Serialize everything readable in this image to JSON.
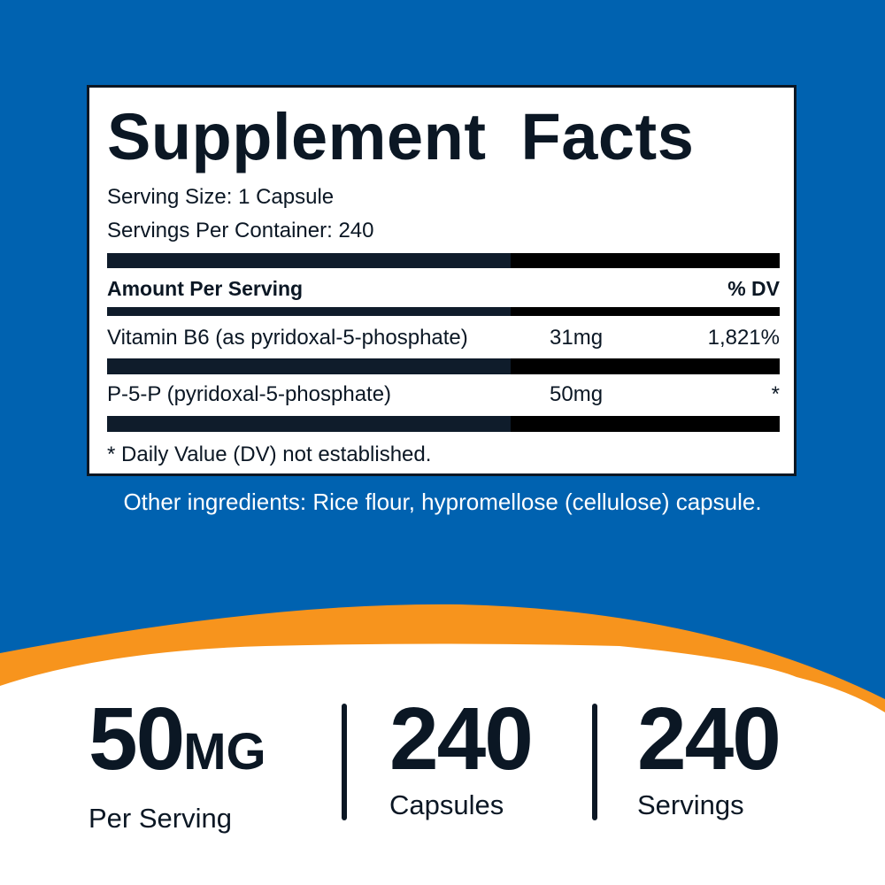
{
  "colors": {
    "blue": "#0062b0",
    "orange": "#f7941d",
    "text": "#0b1724",
    "white": "#ffffff"
  },
  "facts": {
    "title": "Supplement Facts",
    "serving_size": "Serving Size: 1 Capsule",
    "servings_per_container": "Servings Per Container: 240",
    "header": {
      "amount": "Amount Per Serving",
      "dv": "% DV"
    },
    "rows": [
      {
        "name": "Vitamin B6 (as pyridoxal-5-phosphate)",
        "amount": "31mg",
        "dv": "1,821%"
      },
      {
        "name": "P-5-P (pyridoxal-5-phosphate)",
        "amount": "50mg",
        "dv": "*"
      }
    ],
    "footnote": "* Daily Value (DV) not established."
  },
  "other_ingredients": "Other ingredients: Rice flour, hypromellose (cellulose) capsule.",
  "stats": [
    {
      "value": "50",
      "unit": "MG",
      "label": "Per Serving"
    },
    {
      "value": "240",
      "label": "Capsules"
    },
    {
      "value": "240",
      "label": "Servings"
    }
  ]
}
